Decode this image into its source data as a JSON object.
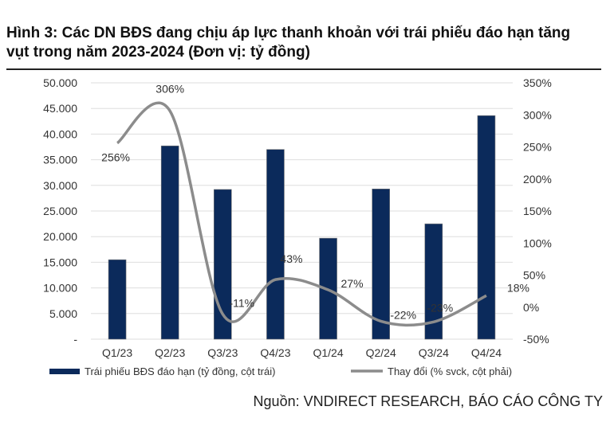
{
  "title": "Hình 3: Các DN BĐS đang chịu áp lực thanh khoản với trái phiếu đáo hạn tăng vụt trong năm 2023-2024 (Đơn vị: tỷ đồng)",
  "source": "Nguồn: VNDIRECT RESEARCH, BÁO CÁO CÔNG TY",
  "chart_data": {
    "type": "bar+line",
    "categories": [
      "Q1/23",
      "Q2/23",
      "Q3/23",
      "Q4/23",
      "Q1/24",
      "Q2/24",
      "Q3/24",
      "Q4/24"
    ],
    "series": [
      {
        "name": "Trái phiếu BĐS đáo hạn (tỷ đồng, cột trái)",
        "type": "bar",
        "axis": "left",
        "color": "#0b2a5b",
        "values": [
          15500,
          37700,
          29200,
          37000,
          19700,
          29300,
          22500,
          43600
        ]
      },
      {
        "name": "Thay đổi (% svck, cột phải)",
        "type": "line",
        "axis": "right",
        "color": "#8c8c8c",
        "values": [
          256,
          306,
          -11,
          43,
          27,
          -22,
          -23,
          18
        ],
        "labels": [
          "256%",
          "306%",
          "-11%",
          "43%",
          "27%",
          "-22%",
          "-23%",
          "18%"
        ]
      }
    ],
    "left_axis": {
      "range": [
        0,
        50000
      ],
      "ticks": [
        "-",
        "5.000",
        "10.000",
        "15.000",
        "20.000",
        "25.000",
        "30.000",
        "35.000",
        "40.000",
        "45.000",
        "50.000"
      ]
    },
    "right_axis": {
      "range": [
        -50,
        350
      ],
      "ticks": [
        "-50%",
        "0%",
        "50%",
        "100%",
        "150%",
        "200%",
        "250%",
        "300%",
        "350%"
      ]
    },
    "grid": true,
    "legend": "bottom"
  }
}
